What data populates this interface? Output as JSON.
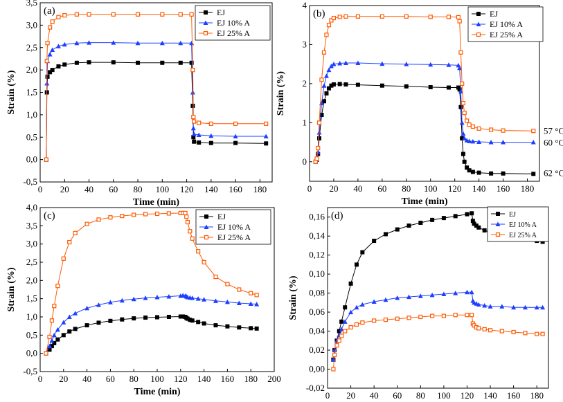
{
  "figure": {
    "series_colors": {
      "EJ": "#000000",
      "EJ 10% A": "#1f3fff",
      "EJ 25% A": "#ff5a00"
    },
    "series_markers": {
      "EJ": "square",
      "EJ 10% A": "triangle",
      "EJ 25% A": "open-square"
    }
  },
  "chart_data": [
    {
      "id": "a",
      "type": "line",
      "panel_label": "(a)",
      "xlabel": "Time (min)",
      "ylabel": "Strain (%)",
      "xlim": [
        0,
        190
      ],
      "ylim": [
        -0.5,
        3.5
      ],
      "xticks": [
        0,
        20,
        40,
        60,
        80,
        100,
        120,
        140,
        160,
        180
      ],
      "xtick_labels": [
        "0",
        "20",
        "40",
        "60",
        "80",
        "100",
        "120",
        "140",
        "160",
        "180"
      ],
      "yticks": [
        -0.5,
        0,
        0.5,
        1,
        1.5,
        2,
        2.5,
        3,
        3.5
      ],
      "ytick_labels": [
        "-0,5",
        "0,0",
        "0,5",
        "1,0",
        "1,5",
        "2,0",
        "2,5",
        "3,0",
        "3,5"
      ],
      "legend": [
        "EJ",
        "EJ 10% A",
        "EJ 25% A"
      ],
      "legend_position": "top-right",
      "annotations": [],
      "series": [
        {
          "name": "EJ",
          "x": [
            5,
            5.5,
            6,
            8,
            10,
            15,
            20,
            30,
            40,
            60,
            80,
            100,
            115,
            124,
            125,
            125.5,
            126,
            130,
            140,
            160,
            185
          ],
          "values": [
            0,
            1.5,
            1.85,
            1.95,
            2.0,
            2.08,
            2.12,
            2.16,
            2.17,
            2.17,
            2.16,
            2.16,
            2.16,
            2.16,
            1.2,
            0.5,
            0.4,
            0.38,
            0.37,
            0.37,
            0.36
          ]
        },
        {
          "name": "EJ 10% A",
          "x": [
            5,
            5.5,
            6,
            8,
            10,
            15,
            20,
            30,
            40,
            60,
            80,
            100,
            115,
            124,
            125,
            125.5,
            126,
            130,
            140,
            160,
            185
          ],
          "values": [
            0,
            1.7,
            2.2,
            2.35,
            2.45,
            2.53,
            2.57,
            2.6,
            2.61,
            2.61,
            2.6,
            2.6,
            2.6,
            2.6,
            1.5,
            0.7,
            0.57,
            0.55,
            0.53,
            0.52,
            0.52
          ]
        },
        {
          "name": "EJ 25% A",
          "x": [
            5,
            5.5,
            6,
            8,
            10,
            15,
            20,
            30,
            40,
            60,
            80,
            100,
            115,
            124,
            125,
            125.5,
            126,
            130,
            140,
            160,
            185
          ],
          "values": [
            0,
            2.2,
            2.6,
            2.95,
            3.08,
            3.18,
            3.22,
            3.24,
            3.24,
            3.24,
            3.24,
            3.24,
            3.24,
            3.24,
            2.0,
            0.95,
            0.85,
            0.82,
            0.8,
            0.8,
            0.8
          ]
        }
      ]
    },
    {
      "id": "b",
      "type": "line",
      "panel_label": "(b)",
      "xlabel": "Time (min)",
      "ylabel": "Strain (%)",
      "xlim": [
        0,
        190
      ],
      "ylim": [
        -0.5,
        4
      ],
      "xticks": [
        0,
        20,
        40,
        60,
        80,
        100,
        120,
        140,
        160,
        180
      ],
      "xtick_labels": [
        "0",
        "20",
        "40",
        "60",
        "80",
        "100",
        "120",
        "140",
        "160",
        "180"
      ],
      "yticks": [
        0,
        1,
        2,
        3,
        4
      ],
      "ytick_labels": [
        "0",
        "1",
        "2",
        "3",
        "4"
      ],
      "legend": [
        "EJ",
        "EJ 10% A",
        "EJ 25% A"
      ],
      "legend_position": "top-right",
      "annotations": [
        {
          "text": "57 °C",
          "y": 0.8
        },
        {
          "text": "60 °C",
          "y": 0.5
        },
        {
          "text": "62 °C",
          "y": -0.28
        }
      ],
      "series": [
        {
          "name": "EJ",
          "x": [
            5,
            6,
            7,
            8,
            10,
            12,
            14,
            16,
            18,
            20,
            25,
            30,
            40,
            60,
            80,
            100,
            115,
            123,
            124,
            125,
            126,
            127,
            128,
            130,
            132,
            135,
            140,
            150,
            160,
            185
          ],
          "values": [
            0,
            0.05,
            0.2,
            0.6,
            1.2,
            1.55,
            1.75,
            1.88,
            1.95,
            1.98,
            1.99,
            1.98,
            1.97,
            1.95,
            1.93,
            1.91,
            1.9,
            1.9,
            1.85,
            1.4,
            0.6,
            0.2,
            0.0,
            -0.15,
            -0.22,
            -0.26,
            -0.28,
            -0.3,
            -0.3,
            -0.31
          ]
        },
        {
          "name": "EJ 10% A",
          "x": [
            5,
            6,
            7,
            8,
            10,
            12,
            14,
            16,
            18,
            20,
            25,
            30,
            40,
            60,
            80,
            100,
            115,
            123,
            124,
            125,
            126,
            127,
            128,
            130,
            132,
            135,
            140,
            150,
            160,
            185
          ],
          "values": [
            0,
            0.06,
            0.25,
            0.75,
            1.5,
            1.95,
            2.2,
            2.35,
            2.45,
            2.5,
            2.52,
            2.53,
            2.53,
            2.51,
            2.5,
            2.49,
            2.48,
            2.47,
            2.4,
            1.8,
            1.0,
            0.72,
            0.6,
            0.55,
            0.53,
            0.52,
            0.51,
            0.5,
            0.5,
            0.5
          ]
        },
        {
          "name": "EJ 25% A",
          "x": [
            5,
            6,
            7,
            8,
            10,
            12,
            14,
            16,
            18,
            20,
            25,
            30,
            40,
            60,
            80,
            100,
            115,
            123,
            124,
            125,
            126,
            127,
            128,
            130,
            132,
            135,
            140,
            150,
            160,
            185
          ],
          "values": [
            0,
            0.08,
            0.35,
            1.0,
            2.1,
            2.8,
            3.25,
            3.5,
            3.62,
            3.68,
            3.71,
            3.72,
            3.72,
            3.72,
            3.72,
            3.71,
            3.71,
            3.7,
            3.6,
            2.8,
            2.0,
            1.5,
            1.25,
            1.05,
            0.95,
            0.9,
            0.85,
            0.82,
            0.8,
            0.79
          ]
        }
      ]
    },
    {
      "id": "c",
      "type": "line",
      "panel_label": "(c)",
      "xlabel": "Time (min)",
      "ylabel": "Strain (%)",
      "xlim": [
        0,
        200
      ],
      "ylim": [
        -0.5,
        4.0
      ],
      "xticks": [
        0,
        20,
        40,
        60,
        80,
        100,
        120,
        140,
        160,
        180,
        200
      ],
      "xtick_labels": [
        "0",
        "20",
        "40",
        "60",
        "80",
        "100",
        "120",
        "140",
        "160",
        "180",
        "200"
      ],
      "yticks": [
        -0.5,
        0,
        0.5,
        1,
        1.5,
        2,
        2.5,
        3,
        3.5,
        4
      ],
      "ytick_labels": [
        "-0,5",
        "0,0",
        "0,5",
        "1,0",
        "1,5",
        "2,0",
        "2,5",
        "3,0",
        "3,5",
        "4,0"
      ],
      "legend": [
        "EJ",
        "EJ 10% A",
        "EJ 25% A"
      ],
      "legend_position": "top-right",
      "annotations": [],
      "series": [
        {
          "name": "EJ",
          "x": [
            5,
            8,
            10,
            12,
            15,
            20,
            25,
            30,
            40,
            50,
            60,
            70,
            80,
            90,
            100,
            110,
            120,
            122,
            124,
            125,
            126,
            128,
            130,
            135,
            140,
            150,
            160,
            170,
            180,
            185
          ],
          "values": [
            0,
            0.1,
            0.2,
            0.28,
            0.38,
            0.5,
            0.6,
            0.67,
            0.77,
            0.84,
            0.89,
            0.93,
            0.96,
            0.98,
            0.99,
            1.0,
            1.01,
            1.01,
            1.0,
            0.97,
            0.95,
            0.92,
            0.9,
            0.86,
            0.82,
            0.77,
            0.74,
            0.71,
            0.69,
            0.68
          ]
        },
        {
          "name": "EJ 10% A",
          "x": [
            5,
            8,
            10,
            12,
            15,
            20,
            25,
            30,
            40,
            50,
            60,
            70,
            80,
            90,
            100,
            110,
            120,
            122,
            124,
            125,
            126,
            128,
            130,
            135,
            140,
            150,
            160,
            170,
            180,
            185
          ],
          "values": [
            0,
            0.2,
            0.35,
            0.5,
            0.65,
            0.85,
            1.0,
            1.1,
            1.24,
            1.33,
            1.4,
            1.45,
            1.49,
            1.52,
            1.54,
            1.56,
            1.58,
            1.59,
            1.58,
            1.56,
            1.54,
            1.53,
            1.52,
            1.5,
            1.48,
            1.44,
            1.41,
            1.38,
            1.36,
            1.35
          ]
        },
        {
          "name": "EJ 25% A",
          "x": [
            5,
            8,
            10,
            12,
            15,
            20,
            25,
            30,
            40,
            50,
            60,
            70,
            80,
            90,
            100,
            110,
            120,
            122,
            124,
            125,
            126,
            128,
            130,
            135,
            140,
            150,
            160,
            170,
            180,
            185
          ],
          "values": [
            0,
            0.45,
            0.9,
            1.3,
            1.85,
            2.6,
            3.05,
            3.3,
            3.55,
            3.67,
            3.73,
            3.77,
            3.8,
            3.82,
            3.83,
            3.84,
            3.85,
            3.85,
            3.85,
            3.75,
            3.6,
            3.35,
            3.15,
            2.8,
            2.5,
            2.1,
            1.9,
            1.75,
            1.65,
            1.6
          ]
        }
      ]
    },
    {
      "id": "d",
      "type": "line",
      "panel_label": "(d)",
      "xlabel": "Time (min)",
      "ylabel": "Strain (%)",
      "xlim": [
        0,
        190
      ],
      "ylim": [
        -0.02,
        0.17
      ],
      "xticks": [
        0,
        20,
        40,
        60,
        80,
        100,
        120,
        140,
        160,
        180
      ],
      "xtick_labels": [
        "0",
        "20",
        "40",
        "60",
        "80",
        "100",
        "120",
        "140",
        "160",
        "180"
      ],
      "yticks": [
        -0.02,
        0,
        0.02,
        0.04,
        0.06,
        0.08,
        0.1,
        0.12,
        0.14,
        0.16
      ],
      "ytick_labels": [
        "-0,02",
        "0,00",
        "0,02",
        "0,04",
        "0,06",
        "0,08",
        "0,10",
        "0,12",
        "0,14",
        "0,16"
      ],
      "legend": [
        "EJ",
        "EJ 10% A",
        "EJ 25% A"
      ],
      "legend_position": "top-right",
      "annotations": [],
      "series": [
        {
          "name": "EJ",
          "x": [
            5,
            6,
            8,
            10,
            12,
            15,
            20,
            25,
            30,
            40,
            50,
            60,
            70,
            80,
            90,
            100,
            110,
            120,
            124,
            125,
            126,
            128,
            130,
            135,
            140,
            150,
            160,
            170,
            180,
            185
          ],
          "values": [
            0.01,
            0.02,
            0.03,
            0.04,
            0.05,
            0.065,
            0.09,
            0.11,
            0.123,
            0.135,
            0.142,
            0.147,
            0.151,
            0.154,
            0.157,
            0.159,
            0.161,
            0.163,
            0.164,
            0.156,
            0.153,
            0.151,
            0.149,
            0.146,
            0.144,
            0.141,
            0.139,
            0.137,
            0.135,
            0.134
          ]
        },
        {
          "name": "EJ 10% A",
          "x": [
            5,
            6,
            8,
            10,
            12,
            15,
            20,
            25,
            30,
            40,
            50,
            60,
            70,
            80,
            90,
            100,
            110,
            120,
            124,
            125,
            126,
            128,
            130,
            135,
            140,
            150,
            160,
            170,
            180,
            185
          ],
          "values": [
            0.01,
            0.02,
            0.03,
            0.036,
            0.042,
            0.05,
            0.06,
            0.065,
            0.068,
            0.071,
            0.073,
            0.075,
            0.076,
            0.077,
            0.078,
            0.079,
            0.08,
            0.081,
            0.081,
            0.072,
            0.07,
            0.069,
            0.068,
            0.067,
            0.066,
            0.066,
            0.065,
            0.065,
            0.065,
            0.065
          ]
        },
        {
          "name": "EJ 25% A",
          "x": [
            5,
            6,
            8,
            10,
            12,
            15,
            20,
            25,
            30,
            40,
            50,
            60,
            70,
            80,
            90,
            100,
            110,
            120,
            124,
            125,
            126,
            128,
            130,
            135,
            140,
            150,
            160,
            170,
            180,
            185
          ],
          "values": [
            0.0,
            0.015,
            0.025,
            0.03,
            0.035,
            0.04,
            0.044,
            0.047,
            0.049,
            0.051,
            0.052,
            0.053,
            0.054,
            0.055,
            0.056,
            0.056,
            0.057,
            0.057,
            0.057,
            0.048,
            0.046,
            0.044,
            0.043,
            0.042,
            0.041,
            0.04,
            0.039,
            0.038,
            0.037,
            0.037
          ]
        }
      ]
    }
  ]
}
